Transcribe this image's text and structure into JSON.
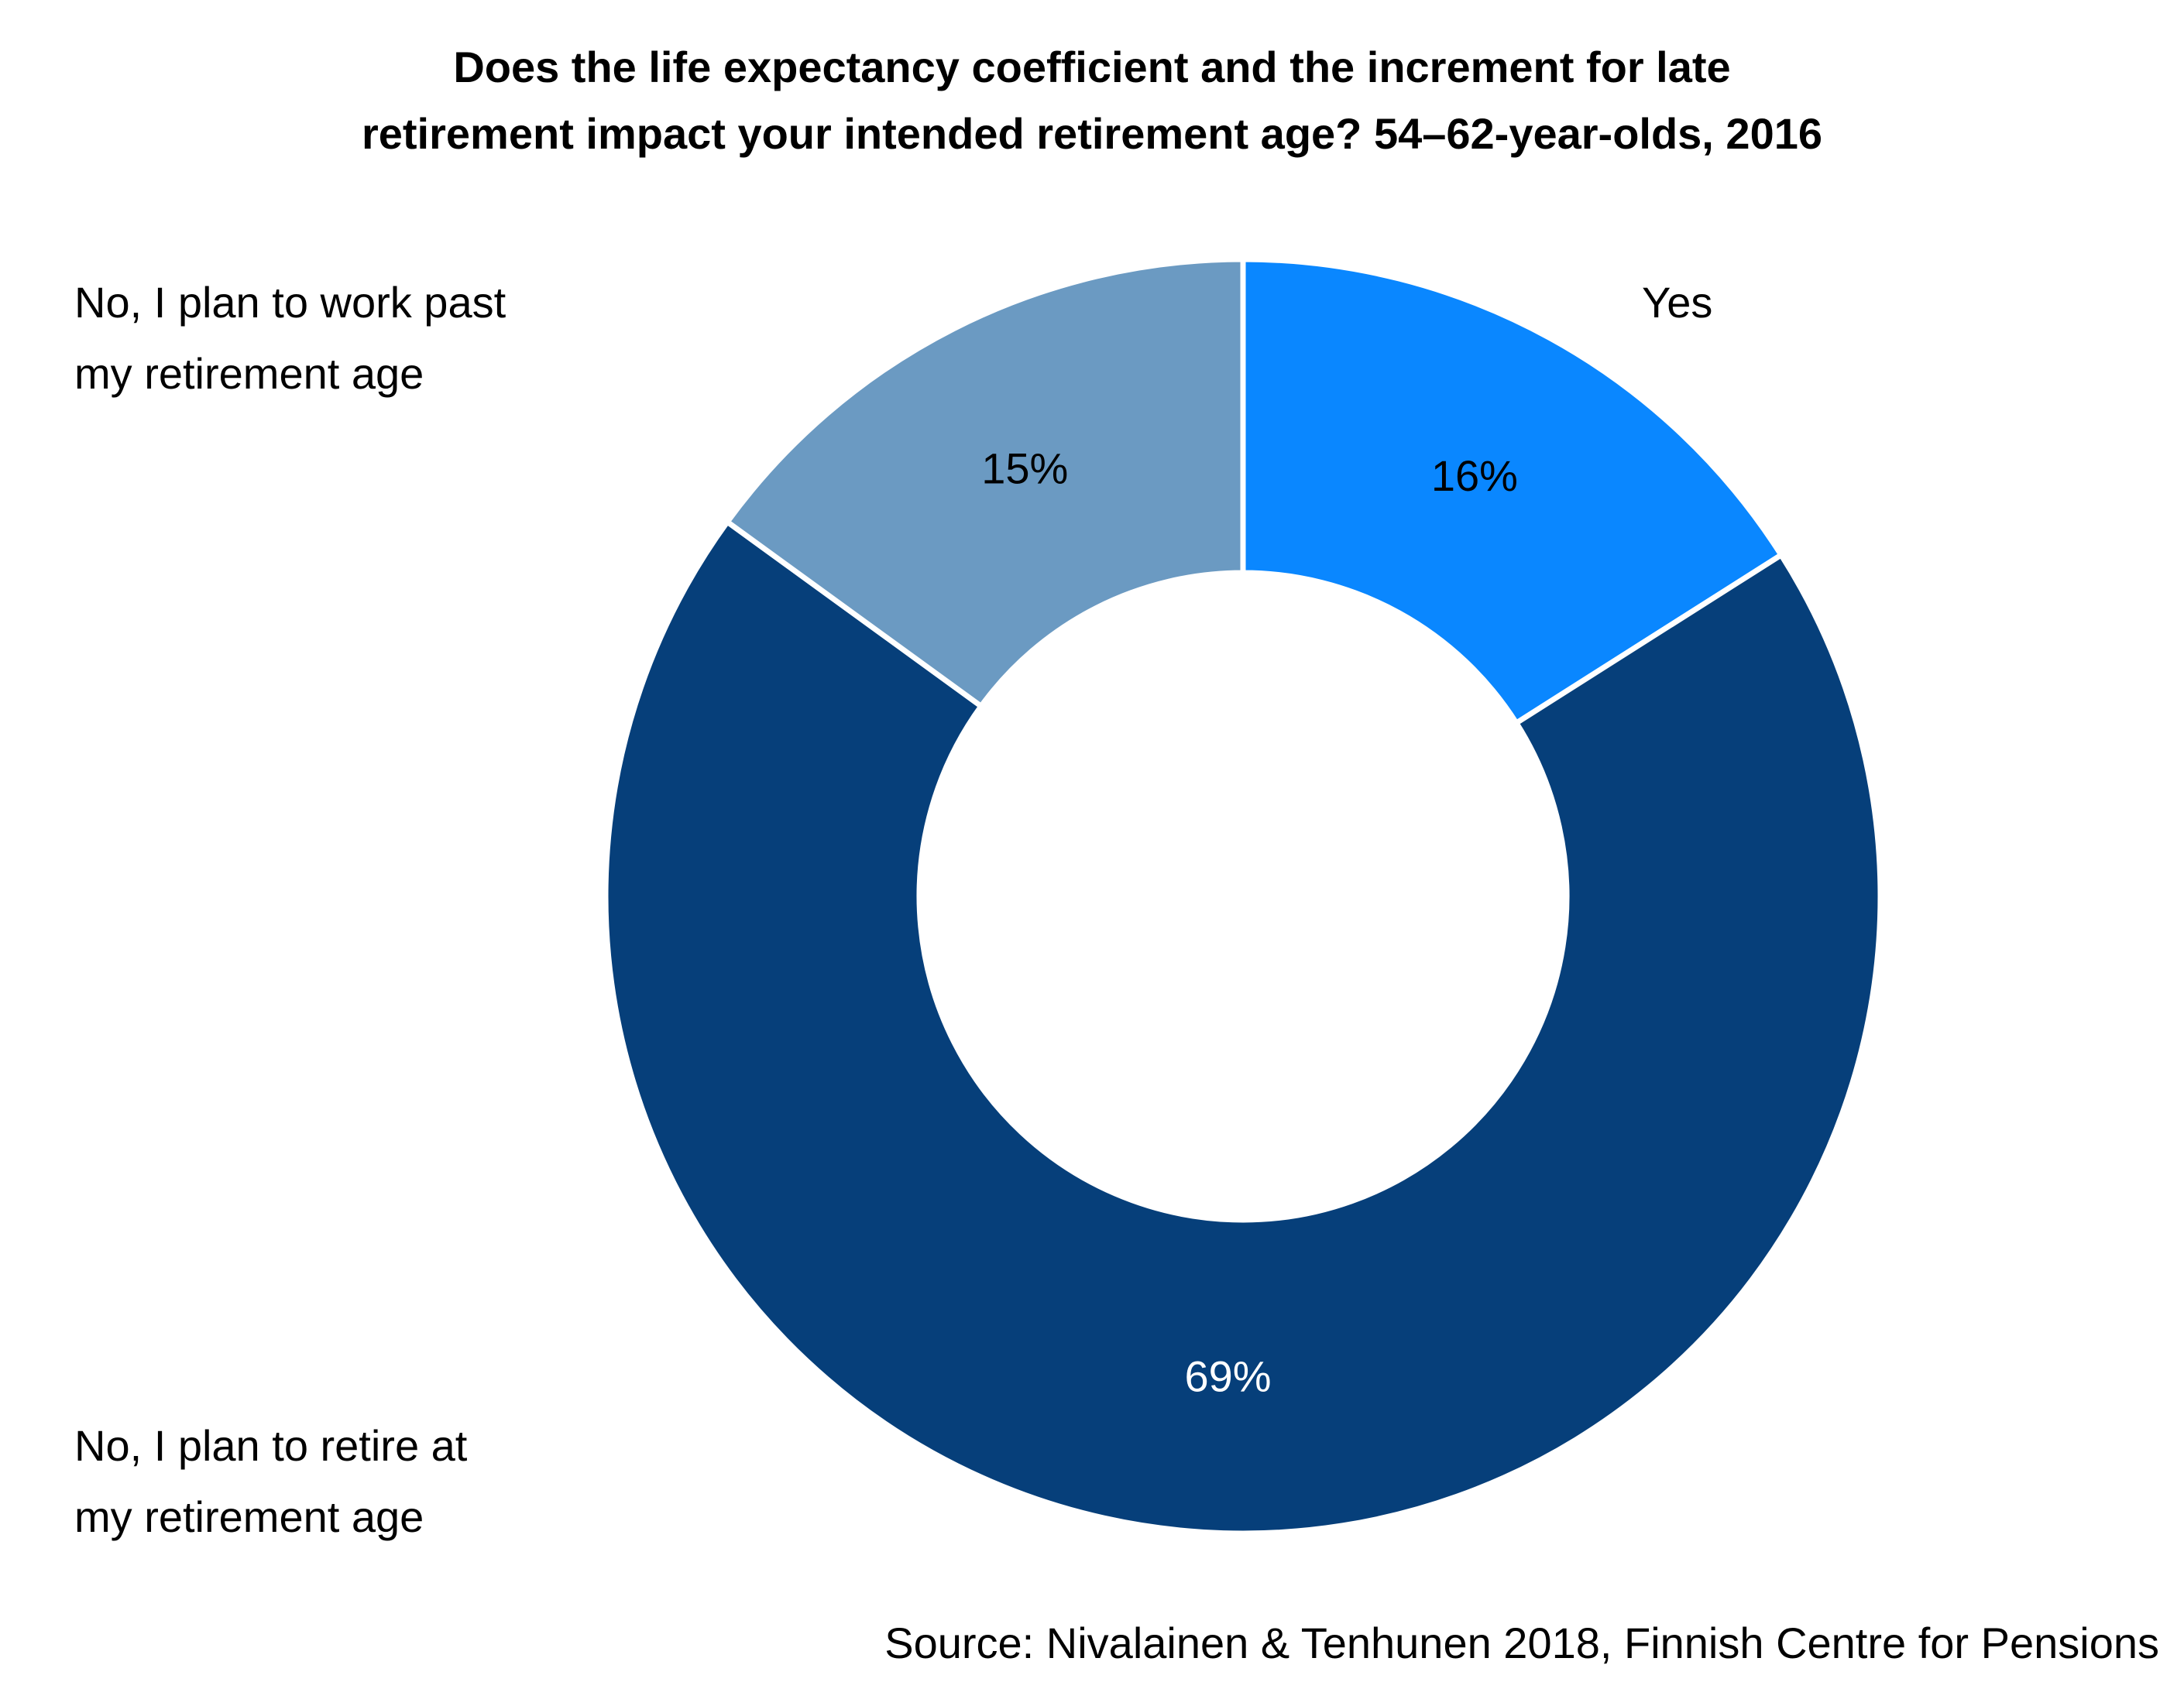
{
  "chart_data": {
    "type": "pie",
    "variant": "donut",
    "title_lines": [
      "Does the life expectancy coefficient and the increment for late",
      "retirement impact your intended retirement age? 54–62-year-olds, 2016"
    ],
    "slices": [
      {
        "label": "Yes",
        "label_lines": [
          "Yes"
        ],
        "value": 16,
        "value_label": "16%",
        "color": "#0a87ff",
        "value_label_color": "#000000"
      },
      {
        "label": "No, I plan to retire at my retirement age",
        "label_lines": [
          "No, I plan to retire at",
          "my retirement age"
        ],
        "value": 69,
        "value_label": "69%",
        "color": "#063f7a",
        "value_label_color": "#ffffff"
      },
      {
        "label": "No, I plan to work past my retirement age",
        "label_lines": [
          "No, I plan to work past",
          "my retirement age"
        ],
        "value": 15,
        "value_label": "15%",
        "color": "#6b9ac2",
        "value_label_color": "#000000"
      }
    ],
    "start": "top",
    "direction": "clockwise",
    "source": "Source: Nivalainen & Tenhunen 2018, Finnish Centre for Pensions"
  }
}
